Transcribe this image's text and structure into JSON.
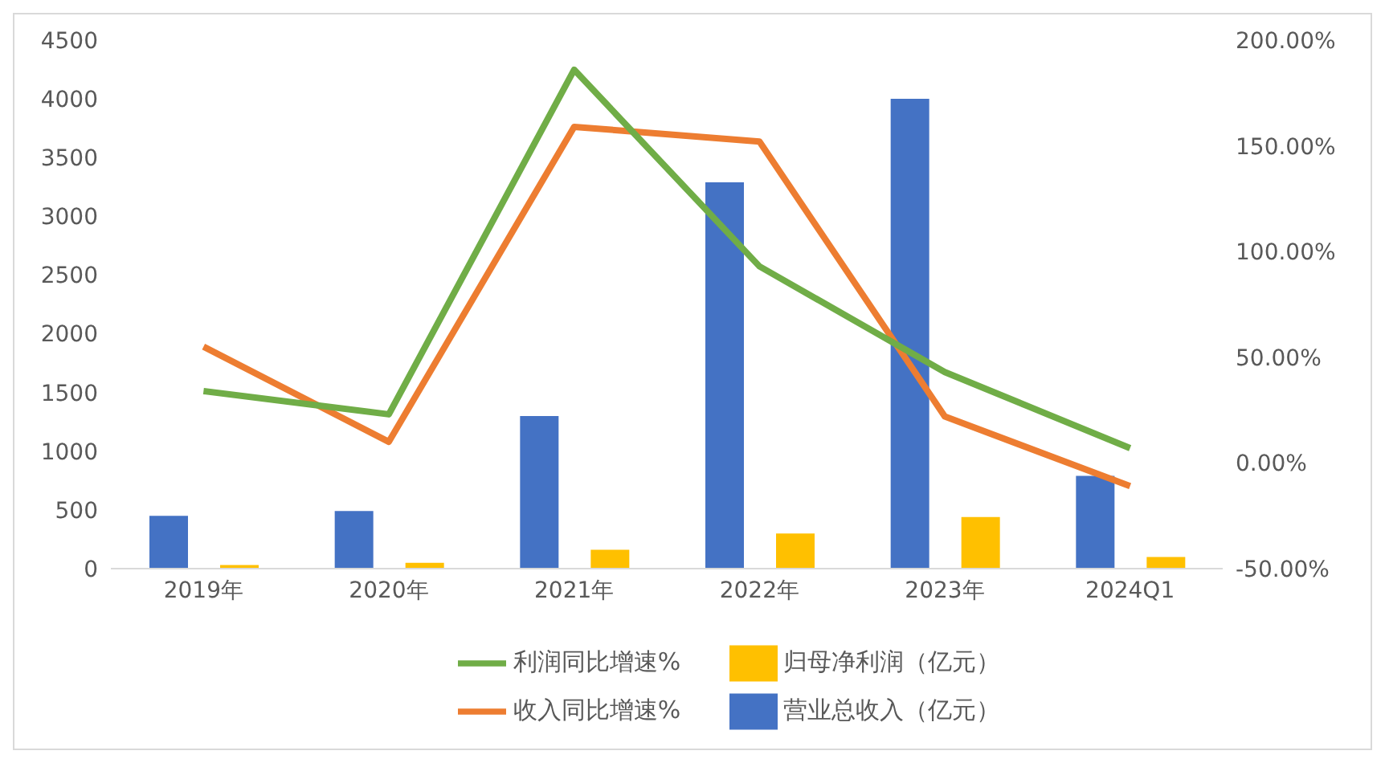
{
  "chart_data": {
    "type": "bar",
    "categories": [
      "2019年",
      "2020年",
      "2021年",
      "2022年",
      "2023年",
      "2024Q1"
    ],
    "series": [
      {
        "name": "营业总收入（亿元）",
        "color": "#4472c4",
        "values": [
          450,
          490,
          1300,
          3290,
          4000,
          790
        ]
      },
      {
        "name": "归母净利润（亿元）",
        "color": "#ffc000",
        "values": [
          30,
          50,
          160,
          300,
          440,
          100
        ]
      },
      {
        "name": "收入同比增速%",
        "type": "line",
        "axis": "y2",
        "color": "#ed7d31",
        "values": [
          55,
          10,
          159,
          152,
          22,
          -11
        ]
      },
      {
        "name": "利润同比增速%",
        "type": "line",
        "axis": "y2",
        "color": "#70ad47",
        "values": [
          34,
          23,
          186,
          93,
          43,
          7
        ]
      }
    ],
    "ylim": [
      0,
      4500
    ],
    "yticks": [
      0,
      500,
      1000,
      1500,
      2000,
      2500,
      3000,
      3500,
      4000,
      4500
    ],
    "y2lim": [
      -50,
      200
    ],
    "y2ticks": [
      {
        "value": -50,
        "label": "-50.00%"
      },
      {
        "value": 0,
        "label": "0.00%"
      },
      {
        "value": 50,
        "label": "50.00%"
      },
      {
        "value": 100,
        "label": "100.00%"
      },
      {
        "value": 150,
        "label": "150.00%"
      },
      {
        "value": 200,
        "label": "200.00%"
      }
    ],
    "grid": false,
    "legend": "bottom",
    "marker": "none"
  }
}
